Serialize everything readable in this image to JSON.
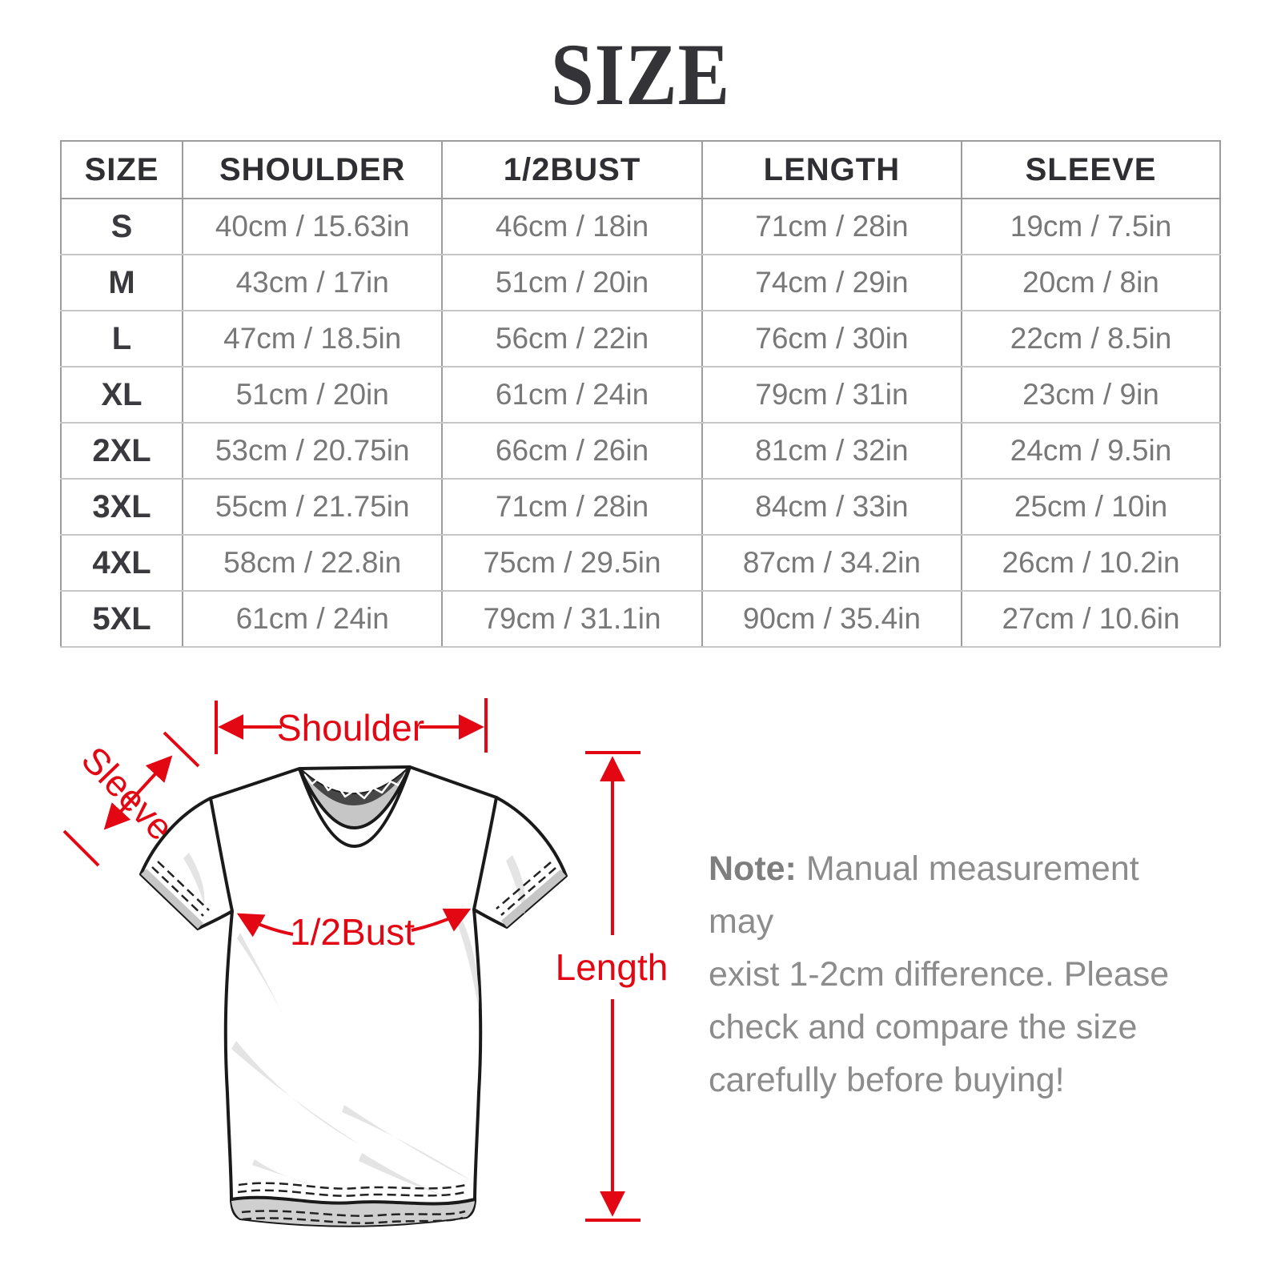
{
  "title": "SIZE",
  "table": {
    "headers": [
      "SIZE",
      "SHOULDER",
      "1/2BUST",
      "LENGTH",
      "SLEEVE"
    ],
    "rows": [
      [
        "S",
        "40cm / 15.63in",
        "46cm / 18in",
        "71cm / 28in",
        "19cm / 7.5in"
      ],
      [
        "M",
        "43cm / 17in",
        "51cm / 20in",
        "74cm / 29in",
        "20cm / 8in"
      ],
      [
        "L",
        "47cm / 18.5in",
        "56cm / 22in",
        "76cm / 30in",
        "22cm / 8.5in"
      ],
      [
        "XL",
        "51cm / 20in",
        "61cm / 24in",
        "79cm / 31in",
        "23cm / 9in"
      ],
      [
        "2XL",
        "53cm / 20.75in",
        "66cm / 26in",
        "81cm / 32in",
        "24cm / 9.5in"
      ],
      [
        "3XL",
        "55cm / 21.75in",
        "71cm / 28in",
        "84cm / 33in",
        "25cm / 10in"
      ],
      [
        "4XL",
        "58cm / 22.8in",
        "75cm / 29.5in",
        "87cm / 34.2in",
        "26cm / 10.2in"
      ],
      [
        "5XL",
        "61cm / 24in",
        "79cm / 31.1in",
        "90cm / 35.4in",
        "27cm / 10.6in"
      ]
    ]
  },
  "diagram": {
    "labels": {
      "shoulder": "Shoulder",
      "sleeve": "Sleeve",
      "half_bust": "1/2Bust",
      "length": "Length"
    }
  },
  "note": {
    "label": "Note:",
    "line1": "Manual measurement may",
    "line2": "exist 1-2cm difference. Please",
    "line3": "check and compare the size",
    "line4": "carefully before buying!"
  },
  "colors": {
    "annotation_red": "#e30613",
    "title_color": "#333338",
    "table_border_vertical": "#9c9c9c",
    "table_border_horizontal": "#c6c6c6",
    "header_text": "#2f2f33",
    "cell_text": "#787878",
    "note_text": "#8c8c8c",
    "collar_gray": "#c6c6c6",
    "shirt_outline": "#1a1a1a"
  }
}
